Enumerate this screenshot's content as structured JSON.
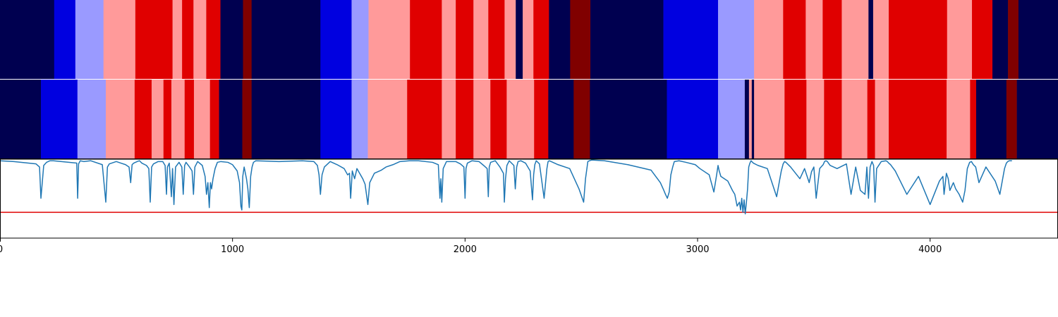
{
  "chart_data": {
    "type": "heatmap",
    "x_range": [
      0,
      4550
    ],
    "x_ticks": [
      0,
      1000,
      2000,
      3000,
      4000
    ],
    "x_tick_labels": [
      "0",
      "1000",
      "2000",
      "3000",
      "4000"
    ],
    "palette": {
      "0": "#000050",
      "1": "#0000e0",
      "2": "#9a9aff",
      "3": "#ff9a9a",
      "4": "#e00000",
      "5": "#800000"
    },
    "tracks": [
      {
        "segments": [
          [
            0,
            233,
            0
          ],
          [
            233,
            324,
            1
          ],
          [
            324,
            445,
            2
          ],
          [
            445,
            582,
            3
          ],
          [
            582,
            742,
            4
          ],
          [
            742,
            783,
            3
          ],
          [
            783,
            832,
            4
          ],
          [
            832,
            887,
            3
          ],
          [
            887,
            948,
            4
          ],
          [
            948,
            1045,
            0
          ],
          [
            1045,
            1082,
            5
          ],
          [
            1082,
            1378,
            0
          ],
          [
            1378,
            1512,
            1
          ],
          [
            1512,
            1585,
            2
          ],
          [
            1585,
            1763,
            3
          ],
          [
            1763,
            1900,
            4
          ],
          [
            1900,
            1960,
            3
          ],
          [
            1960,
            2036,
            4
          ],
          [
            2036,
            2100,
            3
          ],
          [
            2100,
            2170,
            4
          ],
          [
            2170,
            2218,
            3
          ],
          [
            2218,
            2248,
            0
          ],
          [
            2248,
            2294,
            3
          ],
          [
            2294,
            2361,
            4
          ],
          [
            2361,
            2452,
            0
          ],
          [
            2452,
            2539,
            5
          ],
          [
            2539,
            2853,
            0
          ],
          [
            2853,
            3088,
            1
          ],
          [
            3088,
            3243,
            2
          ],
          [
            3243,
            3368,
            3
          ],
          [
            3368,
            3465,
            4
          ],
          [
            3465,
            3538,
            3
          ],
          [
            3538,
            3620,
            4
          ],
          [
            3620,
            3735,
            3
          ],
          [
            3735,
            3755,
            0
          ],
          [
            3755,
            3822,
            3
          ],
          [
            3822,
            4073,
            4
          ],
          [
            4073,
            4180,
            3
          ],
          [
            4180,
            4268,
            4
          ],
          [
            4268,
            4335,
            0
          ],
          [
            4335,
            4380,
            5
          ],
          [
            4380,
            4550,
            0
          ]
        ]
      },
      {
        "segments": [
          [
            0,
            176,
            0
          ],
          [
            176,
            333,
            1
          ],
          [
            333,
            455,
            2
          ],
          [
            455,
            579,
            3
          ],
          [
            579,
            652,
            4
          ],
          [
            652,
            703,
            3
          ],
          [
            703,
            737,
            4
          ],
          [
            737,
            794,
            3
          ],
          [
            794,
            834,
            4
          ],
          [
            834,
            903,
            3
          ],
          [
            903,
            942,
            4
          ],
          [
            942,
            1042,
            0
          ],
          [
            1042,
            1082,
            5
          ],
          [
            1082,
            1378,
            0
          ],
          [
            1378,
            1512,
            1
          ],
          [
            1512,
            1582,
            2
          ],
          [
            1582,
            1751,
            3
          ],
          [
            1751,
            1900,
            4
          ],
          [
            1900,
            1960,
            3
          ],
          [
            1960,
            2036,
            4
          ],
          [
            2036,
            2109,
            3
          ],
          [
            2109,
            2179,
            4
          ],
          [
            2179,
            2297,
            3
          ],
          [
            2297,
            2358,
            4
          ],
          [
            2358,
            2467,
            0
          ],
          [
            2467,
            2537,
            5
          ],
          [
            2537,
            2868,
            0
          ],
          [
            2868,
            3088,
            1
          ],
          [
            3088,
            3203,
            2
          ],
          [
            3203,
            3221,
            0
          ],
          [
            3221,
            3233,
            3
          ],
          [
            3233,
            3243,
            0
          ],
          [
            3243,
            3374,
            3
          ],
          [
            3374,
            3468,
            4
          ],
          [
            3468,
            3544,
            3
          ],
          [
            3544,
            3620,
            4
          ],
          [
            3620,
            3730,
            3
          ],
          [
            3730,
            3763,
            4
          ],
          [
            3763,
            3822,
            3
          ],
          [
            3822,
            4071,
            4
          ],
          [
            4071,
            4172,
            3
          ],
          [
            4172,
            4198,
            4
          ],
          [
            4198,
            4328,
            0
          ],
          [
            4328,
            4373,
            5
          ],
          [
            4373,
            4550,
            0
          ]
        ]
      }
    ],
    "line_series": {
      "color": "#1f77b4",
      "x": [
        0,
        60,
        155,
        170,
        176,
        188,
        200,
        215,
        230,
        330,
        334,
        338,
        345,
        360,
        390,
        440,
        455,
        462,
        470,
        480,
        500,
        520,
        540,
        555,
        562,
        568,
        575,
        590,
        600,
        610,
        630,
        640,
        646,
        652,
        660,
        680,
        700,
        710,
        716,
        720,
        728,
        737,
        742,
        748,
        755,
        770,
        782,
        788,
        794,
        800,
        815,
        826,
        832,
        838,
        850,
        870,
        882,
        888,
        894,
        900,
        905,
        910,
        916,
        925,
        935,
        950,
        980,
        1000,
        1020,
        1030,
        1036,
        1040,
        1044,
        1050,
        1060,
        1066,
        1072,
        1078,
        1084,
        1090,
        1100,
        1200,
        1300,
        1350,
        1365,
        1372,
        1378,
        1385,
        1395,
        1420,
        1450,
        1480,
        1495,
        1503,
        1508,
        1515,
        1525,
        1535,
        1560,
        1570,
        1576,
        1582,
        1590,
        1610,
        1640,
        1660,
        1690,
        1720,
        1760,
        1800,
        1860,
        1885,
        1892,
        1896,
        1900,
        1906,
        1920,
        1960,
        1980,
        1995,
        2000,
        2004,
        2010,
        2030,
        2060,
        2080,
        2095,
        2100,
        2104,
        2110,
        2130,
        2150,
        2165,
        2169,
        2174,
        2180,
        2190,
        2210,
        2216,
        2222,
        2228,
        2240,
        2260,
        2280,
        2290,
        2295,
        2300,
        2306,
        2320,
        2340,
        2352,
        2357,
        2362,
        2370,
        2400,
        2450,
        2490,
        2510,
        2518,
        2524,
        2528,
        2535,
        2545,
        2600,
        2700,
        2800,
        2840,
        2855,
        2862,
        2870,
        2878,
        2885,
        2893,
        2900,
        2920,
        2950,
        2990,
        3010,
        3050,
        3070,
        3082,
        3088,
        3093,
        3100,
        3130,
        3150,
        3160,
        3170,
        3180,
        3185,
        3190,
        3195,
        3200,
        3205,
        3210,
        3215,
        3220,
        3225,
        3230,
        3240,
        3260,
        3300,
        3340,
        3360,
        3368,
        3374,
        3380,
        3400,
        3440,
        3460,
        3480,
        3490,
        3500,
        3510,
        3525,
        3540,
        3546,
        3552,
        3558,
        3570,
        3600,
        3640,
        3660,
        3680,
        3700,
        3720,
        3728,
        3735,
        3742,
        3750,
        3757,
        3763,
        3770,
        3790,
        3810,
        3816,
        3822,
        3830,
        3850,
        3900,
        3950,
        4000,
        4040,
        4055,
        4060,
        4065,
        4070,
        4078,
        4085,
        4100,
        4110,
        4125,
        4140,
        4150,
        4160,
        4170,
        4178,
        4186,
        4196,
        4210,
        4240,
        4280,
        4300,
        4320,
        4328,
        4334,
        4340,
        4346,
        4352,
        4360,
        4380,
        4400,
        4450,
        4500,
        4550
      ],
      "y": [
        0.98,
        0.97,
        0.94,
        0.9,
        0.5,
        0.92,
        0.96,
        0.98,
        0.98,
        0.95,
        0.5,
        0.94,
        0.98,
        0.97,
        0.98,
        0.93,
        0.45,
        0.9,
        0.94,
        0.95,
        0.97,
        0.95,
        0.93,
        0.9,
        0.7,
        0.93,
        0.95,
        0.97,
        0.98,
        0.95,
        0.92,
        0.88,
        0.45,
        0.9,
        0.94,
        0.97,
        0.97,
        0.92,
        0.55,
        0.9,
        0.95,
        0.52,
        0.88,
        0.42,
        0.9,
        0.96,
        0.9,
        0.55,
        0.92,
        0.96,
        0.9,
        0.85,
        0.55,
        0.9,
        0.97,
        0.92,
        0.78,
        0.55,
        0.7,
        0.38,
        0.7,
        0.62,
        0.75,
        0.88,
        0.96,
        0.97,
        0.96,
        0.93,
        0.85,
        0.7,
        0.4,
        0.35,
        0.78,
        0.9,
        0.75,
        0.62,
        0.38,
        0.78,
        0.9,
        0.96,
        0.98,
        0.97,
        0.98,
        0.97,
        0.92,
        0.8,
        0.55,
        0.8,
        0.9,
        0.97,
        0.93,
        0.88,
        0.8,
        0.82,
        0.5,
        0.85,
        0.75,
        0.88,
        0.75,
        0.68,
        0.55,
        0.42,
        0.7,
        0.82,
        0.86,
        0.9,
        0.93,
        0.97,
        0.98,
        0.98,
        0.96,
        0.93,
        0.5,
        0.75,
        0.45,
        0.88,
        0.97,
        0.97,
        0.94,
        0.9,
        0.5,
        0.88,
        0.95,
        0.98,
        0.97,
        0.92,
        0.88,
        0.52,
        0.9,
        0.96,
        0.98,
        0.9,
        0.82,
        0.45,
        0.75,
        0.92,
        0.98,
        0.92,
        0.62,
        0.9,
        0.97,
        0.98,
        0.95,
        0.85,
        0.48,
        0.8,
        0.93,
        0.98,
        0.94,
        0.5,
        0.88,
        0.97,
        0.98,
        0.97,
        0.93,
        0.88,
        0.62,
        0.45,
        0.75,
        0.88,
        0.97,
        0.98,
        0.99,
        0.98,
        0.93,
        0.86,
        0.7,
        0.6,
        0.55,
        0.5,
        0.58,
        0.8,
        0.9,
        0.97,
        0.98,
        0.96,
        0.93,
        0.88,
        0.8,
        0.58,
        0.8,
        0.92,
        0.85,
        0.78,
        0.72,
        0.6,
        0.55,
        0.4,
        0.45,
        0.35,
        0.5,
        0.32,
        0.48,
        0.3,
        0.45,
        0.62,
        0.9,
        0.95,
        0.98,
        0.95,
        0.92,
        0.88,
        0.52,
        0.85,
        0.94,
        0.97,
        0.96,
        0.9,
        0.75,
        0.88,
        0.7,
        0.84,
        0.9,
        0.5,
        0.88,
        0.93,
        0.97,
        0.98,
        0.97,
        0.92,
        0.88,
        0.94,
        0.55,
        0.9,
        0.6,
        0.55,
        0.9,
        0.5,
        0.9,
        0.97,
        0.92,
        0.45,
        0.88,
        0.97,
        0.98,
        0.97,
        0.95,
        0.93,
        0.85,
        0.55,
        0.78,
        0.42,
        0.72,
        0.78,
        0.55,
        0.68,
        0.82,
        0.75,
        0.6,
        0.7,
        0.62,
        0.55,
        0.45,
        0.6,
        0.88,
        0.96,
        0.97,
        0.93,
        0.9,
        0.7,
        0.9,
        0.72,
        0.55,
        0.88,
        0.95,
        0.97,
        0.98,
        0.98,
        0.98
      ],
      "y_range": [
        -0.01,
        1.0
      ]
    },
    "threshold_line": {
      "color": "#e00000",
      "y": 0.32
    }
  }
}
